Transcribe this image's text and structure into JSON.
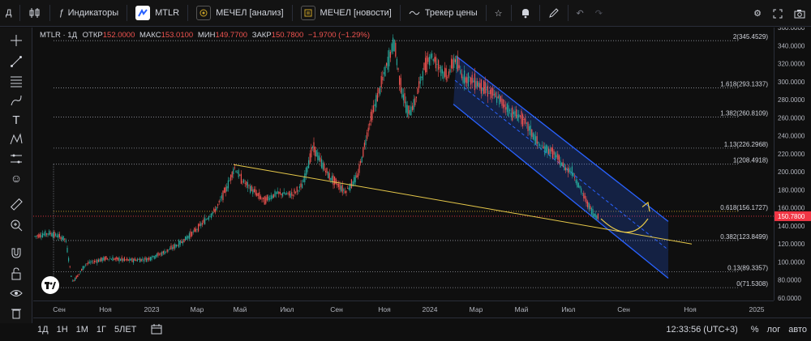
{
  "topbar": {
    "menu_letter": "Д",
    "indicators_label": "Индикаторы",
    "tabs": [
      {
        "label": "MTLR",
        "color": "#2962ff"
      },
      {
        "label": "МЕЧЕЛ [анализ]",
        "color": "#c9a227"
      },
      {
        "label": "МЕЧЕЛ [новости]",
        "color": "#c9a227"
      },
      {
        "label": "Трекер цены",
        "color": "#d1d4dc"
      }
    ]
  },
  "legend": {
    "symbol": "MTLR · 1Д",
    "open_label": "ОТКР",
    "open": "152.0000",
    "high_label": "МАКС",
    "high": "153.0100",
    "low_label": "МИН",
    "low": "149.7700",
    "close_label": "ЗАКР",
    "close": "150.7800",
    "change": "−1.9700 (−1.29%)"
  },
  "y_axis": {
    "ticks": [
      "360.0000",
      "340.0000",
      "320.0000",
      "300.0000",
      "280.0000",
      "260.0000",
      "240.0000",
      "220.0000",
      "200.0000",
      "180.0000",
      "160.0000",
      "140.0000",
      "120.0000",
      "100.0000",
      "80.0000",
      "60.0000"
    ],
    "current_price": "150.7800",
    "current_price_color": "#f23645"
  },
  "x_axis": {
    "ticks": [
      "Сен",
      "Ноя",
      "2023",
      "Мар",
      "Май",
      "Июл",
      "Сен",
      "Ноя",
      "2024",
      "Мар",
      "Май",
      "Июл",
      "Сен",
      "Ноя",
      "2025"
    ]
  },
  "fib_levels": [
    {
      "label": "2(345.4529)",
      "value": 345.4529
    },
    {
      "label": "1.618(293.1337)",
      "value": 293.1337
    },
    {
      "label": "1.382(260.8109)",
      "value": 260.8109
    },
    {
      "label": "1.13(226.2968)",
      "value": 226.2968
    },
    {
      "label": "1(208.4918)",
      "value": 208.4918
    },
    {
      "label": "0.618(156.1727)",
      "value": 156.1727
    },
    {
      "label": "0.382(123.8499)",
      "value": 123.8499
    },
    {
      "label": "0.13(89.3357)",
      "value": 89.3357
    },
    {
      "label": "0(71.5308)",
      "value": 71.5308
    }
  ],
  "bottom": {
    "ranges": [
      "1Д",
      "1Н",
      "1М",
      "1Г",
      "5ЛЕТ"
    ],
    "time": "12:33:56 (UTC+3)",
    "percent": "%",
    "log": "лог",
    "auto": "авто"
  },
  "colors": {
    "up": "#26a69a",
    "down": "#ef5350",
    "channel": "#2962ff",
    "trendline": "#e6c84a"
  }
}
